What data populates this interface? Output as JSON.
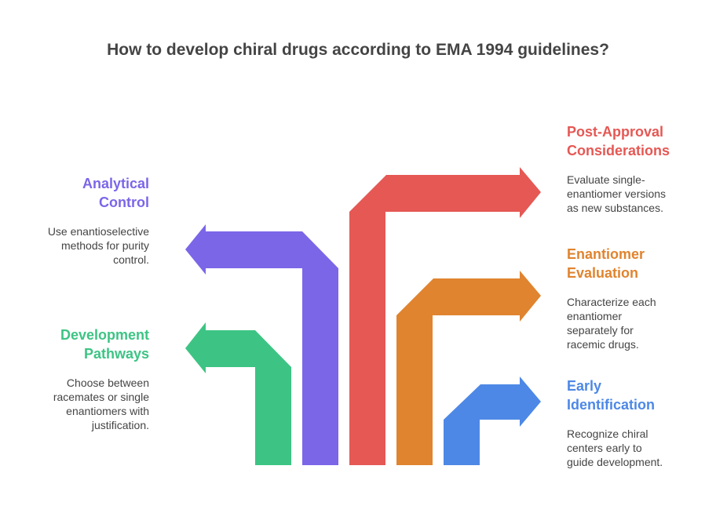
{
  "title": "How to develop chiral drugs according to EMA 1994 guidelines?",
  "steps": {
    "development": {
      "heading_1": "Development",
      "heading_2": "Pathways",
      "desc_1": "Choose between",
      "desc_2": "racemates or single",
      "desc_3": "enantiomers with",
      "desc_4": "justification.",
      "color": "#3dc484"
    },
    "analytical": {
      "heading_1": "Analytical",
      "heading_2": "Control",
      "desc_1": "Use enantioselective",
      "desc_2": "methods for purity",
      "desc_3": "control.",
      "color": "#7b66e8"
    },
    "postapproval": {
      "heading_1": "Post-Approval",
      "heading_2": "Considerations",
      "desc_1": "Evaluate single-",
      "desc_2": "enantiomer versions",
      "desc_3": "as new substances.",
      "color": "#e55854"
    },
    "enantiomer": {
      "heading_1": "Enantiomer",
      "heading_2": "Evaluation",
      "desc_1": "Characterize each",
      "desc_2": "enantiomer",
      "desc_3": "separately for",
      "desc_4": "racemic drugs.",
      "color": "#e0842f"
    },
    "early": {
      "heading_1": "Early",
      "heading_2": "Identification",
      "desc_1": "Recognize chiral",
      "desc_2": "centers early to",
      "desc_3": "guide development.",
      "color": "#4d88e6"
    }
  }
}
